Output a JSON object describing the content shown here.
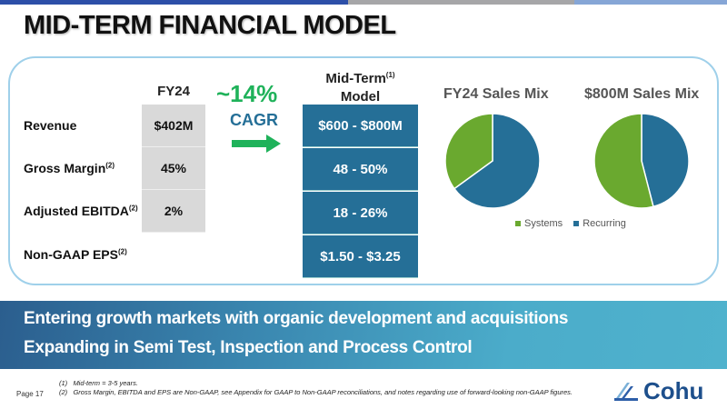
{
  "title": "MID-TERM FINANCIAL MODEL",
  "colors": {
    "top_bar": [
      "#2d4fa8",
      "#a6a6a8",
      "#86a6d6"
    ],
    "fy24_cell": "#d9d9d9",
    "model_cell": "#256f97",
    "cagr_green": "#1fb25a",
    "systems": "#6aa92f",
    "recurring": "#256f97"
  },
  "table": {
    "fy24_header": "FY24",
    "model_header": "Mid-Term",
    "model_header_sup": "(1)",
    "model_header_2": "Model",
    "rows": [
      {
        "label": "Revenue",
        "sup": "",
        "fy24": "$402M",
        "model": "$600 - $800M"
      },
      {
        "label": "Gross Margin",
        "sup": "(2)",
        "fy24": "45%",
        "model": "48 - 50%"
      },
      {
        "label": "Adjusted EBITDA",
        "sup": "(2)",
        "fy24": "2%",
        "model": "18 - 26%"
      },
      {
        "label": "Non-GAAP EPS",
        "sup": "(2)",
        "fy24": "",
        "model": "$1.50 - $3.25"
      }
    ]
  },
  "cagr": {
    "value": "~14%",
    "label": "CAGR",
    "icon": "arrow-right-icon"
  },
  "chart_data": [
    {
      "type": "pie",
      "title": "FY24 Sales Mix",
      "categories": [
        "Systems",
        "Recurring"
      ],
      "values": [
        35,
        65
      ],
      "colors": [
        "#6aa92f",
        "#256f97"
      ],
      "legend": "bottom"
    },
    {
      "type": "pie",
      "title": "$800M Sales Mix",
      "categories": [
        "Systems",
        "Recurring"
      ],
      "values": [
        54,
        46
      ],
      "colors": [
        "#6aa92f",
        "#256f97"
      ],
      "legend": "bottom"
    }
  ],
  "legend": [
    "Systems",
    "Recurring"
  ],
  "banner": [
    "Entering growth markets with organic development and acquisitions",
    "Expanding in Semi Test, Inspection and Process Control"
  ],
  "footnotes": [
    {
      "mark": "(1)",
      "text": "Mid-term = 3-5 years."
    },
    {
      "mark": "(2)",
      "text": "Gross Margin, EBITDA and EPS are Non-GAAP, see Appendix for GAAP to Non-GAAP reconciliations, and notes regarding use of forward-looking non-GAAP figures."
    }
  ],
  "page": "Page 17",
  "logo": "Cohu"
}
